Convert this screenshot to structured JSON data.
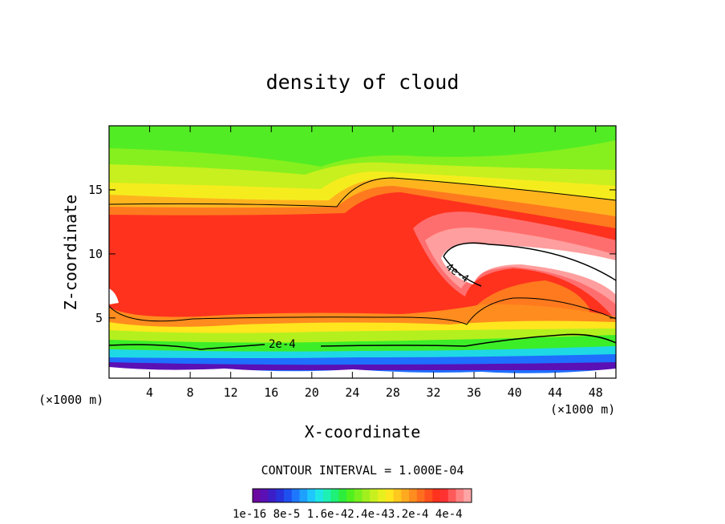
{
  "chart_data": {
    "type": "contour",
    "title": "density of cloud",
    "xlabel": "X-coordinate",
    "ylabel": "Z-coordinate",
    "x_unit_left": "(×1000 m)",
    "x_unit_right": "(×1000 m)",
    "xlim": [
      0,
      50
    ],
    "ylim": [
      0.3,
      20
    ],
    "x_ticks": [
      4,
      8,
      12,
      16,
      20,
      24,
      28,
      32,
      36,
      40,
      44,
      48
    ],
    "y_ticks": [
      5,
      10,
      15
    ],
    "contour_interval_text": "CONTOUR INTERVAL = 1.000E-04",
    "contour_labels": [
      "2e-4",
      "4e-4"
    ],
    "colorbar_labels": [
      "1e-16",
      "8e-5",
      "1.6e-4",
      "2.4e-4",
      "3.2e-4",
      "4e-4"
    ],
    "colorbar_text": "1e-16 8e-5 1.6e-42.4e-43.2e-4 4e-4",
    "colorbar_colors": [
      "#6a0aa0",
      "#5a10b4",
      "#3c1ec8",
      "#2832dc",
      "#1e50f0",
      "#1e78ff",
      "#1ea0ff",
      "#1ec8ff",
      "#1ee6e6",
      "#1ef0b4",
      "#1ef078",
      "#2ded3c",
      "#50f01e",
      "#78f01e",
      "#a0f01e",
      "#c8f01e",
      "#e6f01e",
      "#ffe61e",
      "#ffc81e",
      "#ffaa1e",
      "#ff8c1e",
      "#ff6e1e",
      "#ff501e",
      "#ff321e",
      "#ff3232",
      "#ff5a5a",
      "#ff8282",
      "#ffa5a5"
    ],
    "bands": [
      {
        "level": "above 16",
        "color": "#50f01e"
      },
      {
        "level": "15-16",
        "color": "#c8f01e"
      },
      {
        "level": "14-15",
        "color": "#ffe61e"
      },
      {
        "level": "13-14",
        "color": "#ff8c1e"
      },
      {
        "level": "5-13",
        "color": "#ff321e"
      },
      {
        "level": "core max",
        "color": "#ffffff"
      }
    ]
  }
}
